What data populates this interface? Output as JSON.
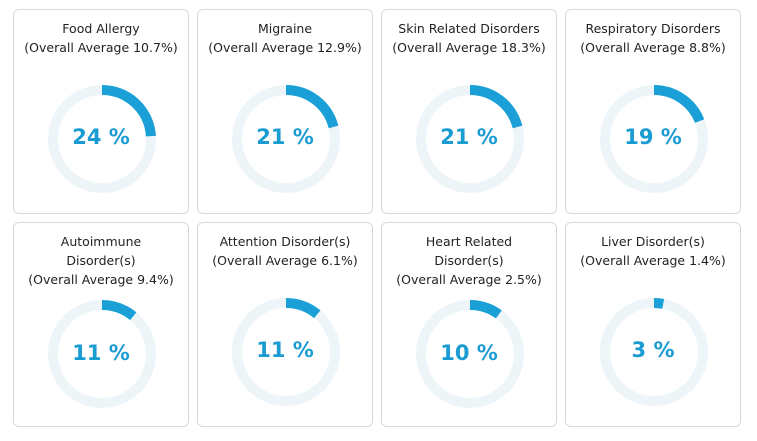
{
  "chart_data": {
    "type": "donut",
    "accent_color": "#1a9fd6",
    "track_color": "#eef5f9",
    "items": [
      {
        "title_lines": [
          "Food Allergy",
          "(Overall Average 10.7%)"
        ],
        "value": 24,
        "label": "24 %"
      },
      {
        "title_lines": [
          "Migraine",
          "(Overall Average 12.9%)"
        ],
        "value": 21,
        "label": "21 %"
      },
      {
        "title_lines": [
          "Skin Related Disorders",
          "(Overall Average 18.3%)"
        ],
        "value": 21,
        "label": "21 %"
      },
      {
        "title_lines": [
          "Respiratory Disorders",
          "(Overall Average 8.8%)"
        ],
        "value": 19,
        "label": "19 %"
      },
      {
        "title_lines": [
          "Autoimmune",
          "Disorder(s)",
          "(Overall Average 9.4%)"
        ],
        "value": 11,
        "label": "11 %"
      },
      {
        "title_lines": [
          "Attention Disorder(s)",
          "(Overall Average 6.1%)"
        ],
        "value": 11,
        "label": "11 %"
      },
      {
        "title_lines": [
          "Heart Related",
          "Disorder(s)",
          "(Overall Average 2.5%)"
        ],
        "value": 10,
        "label": "10 %"
      },
      {
        "title_lines": [
          "Liver Disorder(s)",
          "(Overall Average 1.4%)"
        ],
        "value": 3,
        "label": "3 %"
      }
    ]
  }
}
